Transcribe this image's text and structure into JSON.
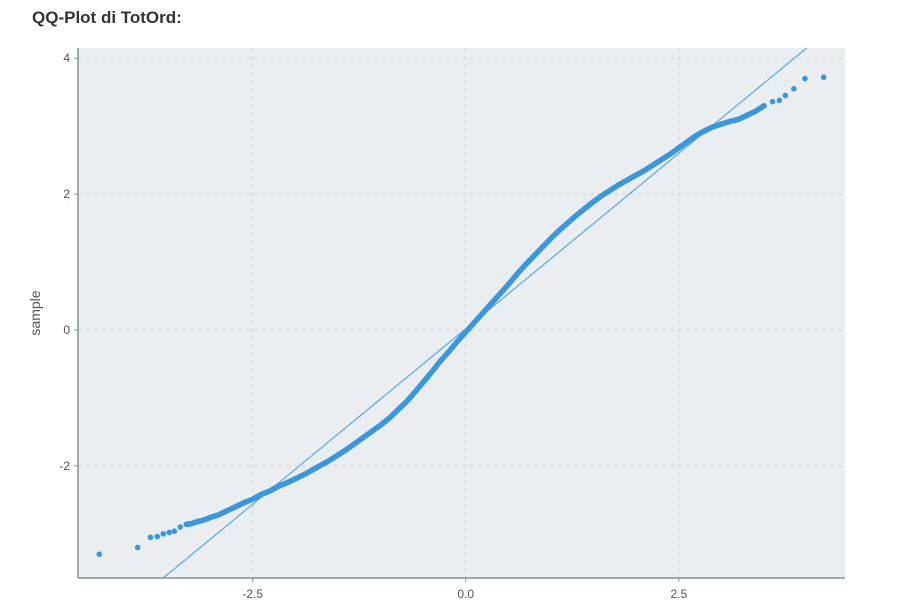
{
  "chart_data": {
    "type": "scatter",
    "title": "QQ-Plot di TotOrd:",
    "xlabel": "",
    "ylabel": "sample",
    "xlim": [
      -4.55,
      4.45
    ],
    "ylim": [
      -3.65,
      4.15
    ],
    "x_ticks": [
      -2.5,
      0,
      2.5
    ],
    "x_tick_labels": [
      "-2.5",
      "0.0",
      "2.5"
    ],
    "y_ticks": [
      -2,
      0,
      2,
      4
    ],
    "y_tick_labels": [
      "-2",
      "0",
      "2",
      "4"
    ],
    "grid": true,
    "colors": {
      "points": "#3a96dd",
      "line": "#5aa8e6",
      "panel": "#ebeef0",
      "grid": "#cfd3d6",
      "axis": "#8a8f94"
    },
    "series": [
      {
        "values": {
          "points": [
            [
              -4.3,
              -3.3
            ],
            [
              -3.85,
              -3.2
            ],
            [
              -3.7,
              -3.05
            ],
            [
              -3.62,
              -3.04
            ],
            [
              -3.55,
              -3.0
            ],
            [
              -3.48,
              -2.98
            ],
            [
              -3.42,
              -2.96
            ],
            [
              -3.35,
              -2.9
            ],
            [
              -3.28,
              -2.86
            ],
            [
              -3.22,
              -2.85
            ],
            [
              -3.15,
              -2.82
            ],
            [
              -3.08,
              -2.8
            ],
            [
              -3.0,
              -2.76
            ],
            [
              -2.9,
              -2.72
            ],
            [
              -2.8,
              -2.66
            ],
            [
              -2.7,
              -2.6
            ],
            [
              -2.6,
              -2.54
            ],
            [
              -2.5,
              -2.49
            ],
            [
              -2.4,
              -2.42
            ],
            [
              -2.3,
              -2.37
            ],
            [
              -2.2,
              -2.3
            ],
            [
              -2.1,
              -2.25
            ],
            [
              -2.0,
              -2.19
            ],
            [
              -1.9,
              -2.13
            ],
            [
              -1.8,
              -2.06
            ],
            [
              -1.7,
              -1.99
            ],
            [
              -1.6,
              -1.92
            ],
            [
              -1.5,
              -1.84
            ],
            [
              -1.4,
              -1.76
            ],
            [
              -1.3,
              -1.67
            ],
            [
              -1.2,
              -1.58
            ],
            [
              -1.1,
              -1.49
            ],
            [
              -1.0,
              -1.4
            ],
            [
              -0.9,
              -1.3
            ],
            [
              -0.8,
              -1.18
            ],
            [
              -0.7,
              -1.06
            ],
            [
              -0.6,
              -0.92
            ],
            [
              -0.5,
              -0.77
            ],
            [
              -0.4,
              -0.62
            ],
            [
              -0.3,
              -0.46
            ],
            [
              -0.2,
              -0.32
            ],
            [
              -0.1,
              -0.17
            ],
            [
              0.0,
              -0.03
            ],
            [
              0.1,
              0.11
            ],
            [
              0.2,
              0.25
            ],
            [
              0.3,
              0.39
            ],
            [
              0.4,
              0.53
            ],
            [
              0.5,
              0.67
            ],
            [
              0.6,
              0.82
            ],
            [
              0.7,
              0.96
            ],
            [
              0.8,
              1.09
            ],
            [
              0.9,
              1.22
            ],
            [
              1.0,
              1.35
            ],
            [
              1.1,
              1.47
            ],
            [
              1.2,
              1.58
            ],
            [
              1.3,
              1.69
            ],
            [
              1.4,
              1.79
            ],
            [
              1.5,
              1.89
            ],
            [
              1.6,
              1.98
            ],
            [
              1.7,
              2.06
            ],
            [
              1.8,
              2.14
            ],
            [
              1.9,
              2.21
            ],
            [
              2.0,
              2.28
            ],
            [
              2.1,
              2.35
            ],
            [
              2.2,
              2.43
            ],
            [
              2.3,
              2.51
            ],
            [
              2.4,
              2.59
            ],
            [
              2.5,
              2.68
            ],
            [
              2.6,
              2.77
            ],
            [
              2.7,
              2.86
            ],
            [
              2.8,
              2.93
            ],
            [
              2.9,
              2.99
            ],
            [
              3.0,
              3.03
            ],
            [
              3.1,
              3.07
            ],
            [
              3.2,
              3.1
            ],
            [
              3.3,
              3.16
            ],
            [
              3.4,
              3.22
            ],
            [
              3.5,
              3.3
            ],
            [
              3.6,
              3.36
            ],
            [
              3.68,
              3.38
            ],
            [
              3.75,
              3.45
            ],
            [
              3.85,
              3.55
            ],
            [
              3.98,
              3.7
            ],
            [
              4.2,
              3.72
            ]
          ],
          "reference_line": [
            [
              -3.55,
              -3.65
            ],
            [
              4.0,
              4.15
            ]
          ]
        }
      }
    ]
  }
}
